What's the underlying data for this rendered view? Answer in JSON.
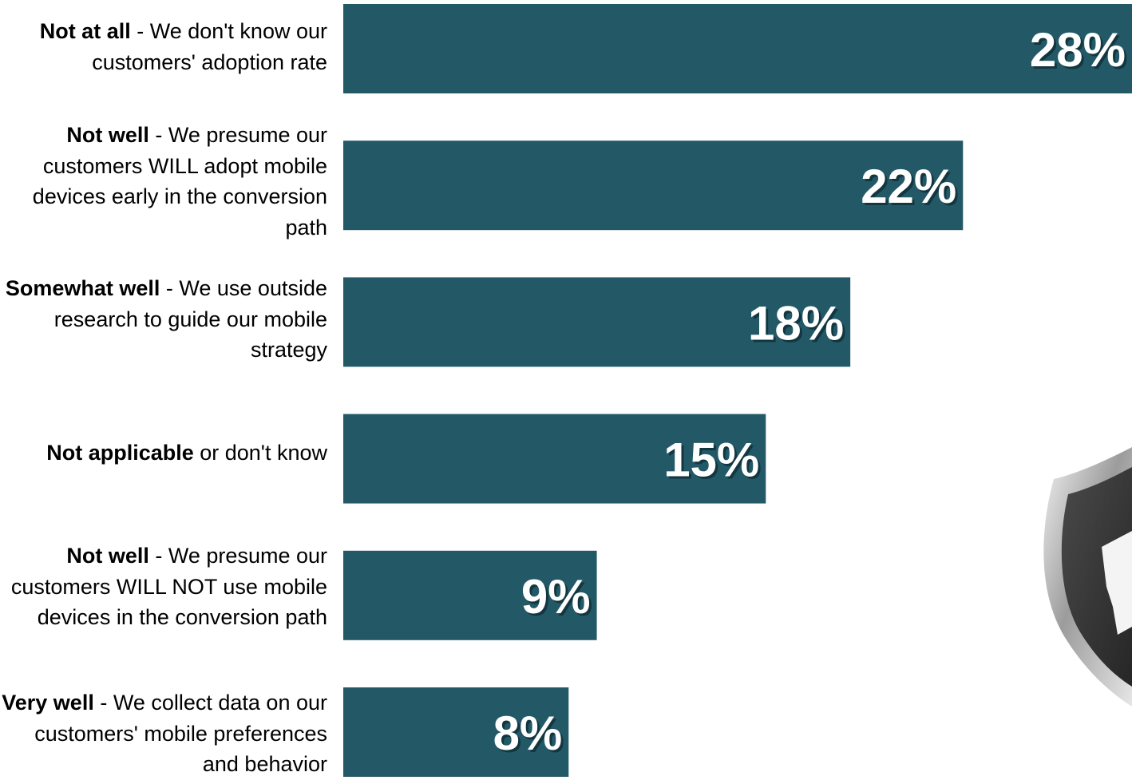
{
  "chart_data": {
    "type": "bar",
    "orientation": "horizontal",
    "categories": [
      {
        "bold": "Not at all",
        "rest": " - We don't know our customers' adoption rate"
      },
      {
        "bold": "Not well",
        "rest": " - We presume our customers WILL adopt mobile devices early in the conversion path"
      },
      {
        "bold": "Somewhat well",
        "rest": " - We use outside research to guide our mobile strategy"
      },
      {
        "bold": "Not applicable",
        "rest": " or don't know"
      },
      {
        "bold": "Not well",
        "rest": " - We presume our customers WILL NOT use mobile devices in the conversion path"
      },
      {
        "bold": "Very well",
        "rest": " - We collect data on our customers' mobile preferences and behavior"
      }
    ],
    "values": [
      28,
      22,
      18,
      15,
      9,
      8
    ],
    "data_labels": [
      "28%",
      "22%",
      "18%",
      "15%",
      "9%",
      "8%"
    ],
    "bar_color": "#235967",
    "label_color": "#ffffff",
    "grid": false
  },
  "decor": {
    "badge_icon": "shield-sticker-icon",
    "badge_colors": [
      "#3b3b3b",
      "#bdbdbd",
      "#ffffff"
    ]
  }
}
